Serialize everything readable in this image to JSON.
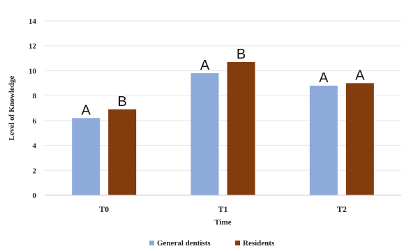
{
  "chart_data": {
    "type": "bar",
    "title": "",
    "xlabel": "Time",
    "ylabel": "Level of Knowledge",
    "ylim": [
      0,
      14
    ],
    "yticks": [
      0,
      2,
      4,
      6,
      8,
      10,
      12,
      14
    ],
    "grid": true,
    "legend_position": "bottom",
    "categories": [
      "T0",
      "T1",
      "T2"
    ],
    "series": [
      {
        "name": "General dentists",
        "color": "#8eaadb",
        "values": [
          6.2,
          9.8,
          8.8
        ],
        "labels": [
          "A",
          "A",
          "A"
        ]
      },
      {
        "name": "Residents",
        "color": "#843c0c",
        "values": [
          6.9,
          10.7,
          9.0
        ],
        "labels": [
          "B",
          "B",
          "A"
        ]
      }
    ]
  }
}
